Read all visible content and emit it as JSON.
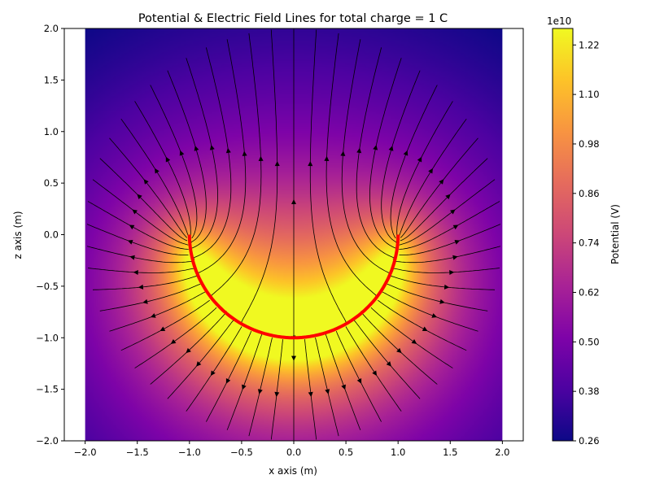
{
  "chart_data": {
    "type": "heatmap",
    "title": "Potential & Electric Field Lines for total charge = 1 C",
    "xlabel": "x axis (m)",
    "ylabel": "z axis (m)",
    "xlim": [
      -2.2,
      2.2
    ],
    "ylim": [
      -2.0,
      2.0
    ],
    "data_extent": {
      "x": [
        -2.0,
        2.0
      ],
      "z": [
        -2.0,
        2.0
      ]
    },
    "xticks": [
      "−2.0",
      "−1.5",
      "−1.0",
      "−0.5",
      "0.0",
      "0.5",
      "1.0",
      "1.5",
      "2.0"
    ],
    "yticks": [
      "−2.0",
      "−1.5",
      "−1.0",
      "−0.5",
      "0.0",
      "0.5",
      "1.0",
      "1.5",
      "2.0"
    ],
    "colormap": "plasma",
    "colorbar": {
      "label": "Potential (V)",
      "multiplier": "1e10",
      "range": [
        0.26,
        1.26
      ],
      "ticks": [
        "0.26",
        "0.38",
        "0.50",
        "0.62",
        "0.74",
        "0.86",
        "0.98",
        "1.10",
        "1.22"
      ]
    },
    "charge_arc": {
      "description_shape": "semicircle",
      "center": [
        0,
        0
      ],
      "radius": 1.0,
      "angle_range_deg": [
        180,
        360
      ],
      "color": "#ff0000"
    },
    "field_lines_color": "#000000",
    "grid": false
  }
}
